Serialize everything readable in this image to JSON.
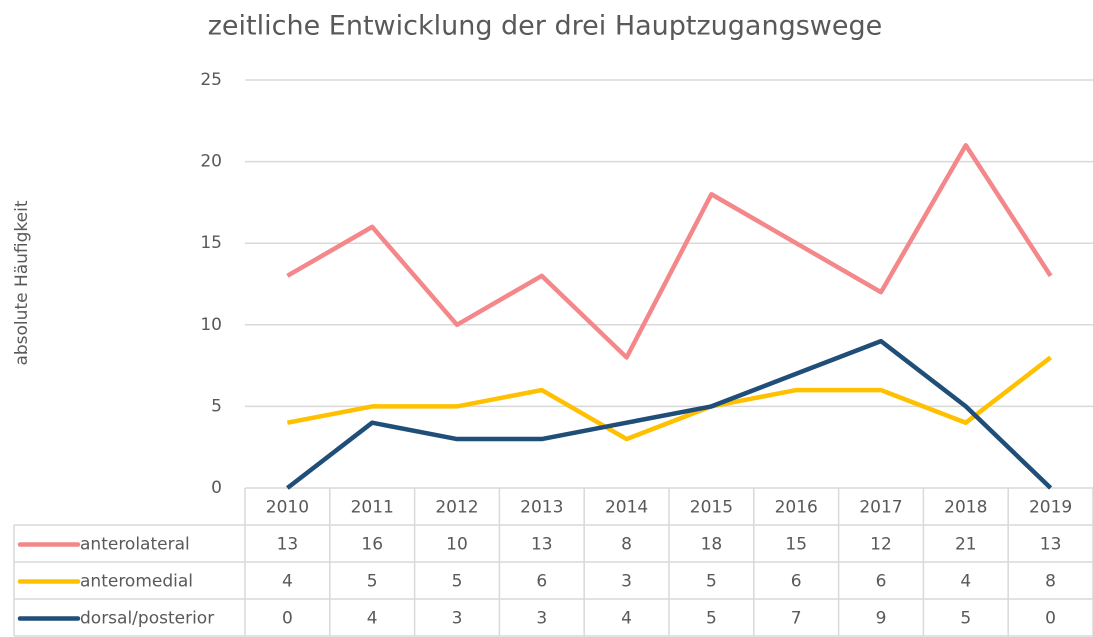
{
  "chart_data": {
    "type": "line",
    "title": "zeitliche Entwicklung der drei Hauptzugangswege",
    "y_label": "absolute Häufigkeit",
    "categories": [
      "2010",
      "2011",
      "2012",
      "2013",
      "2014",
      "2015",
      "2016",
      "2017",
      "2018",
      "2019"
    ],
    "series": [
      {
        "name": "anterolateral",
        "color": "#f4878a",
        "values": [
          13,
          16,
          10,
          13,
          8,
          18,
          15,
          12,
          21,
          13
        ]
      },
      {
        "name": "anteromedial",
        "color": "#ffc000",
        "values": [
          4,
          5,
          5,
          6,
          3,
          5,
          6,
          6,
          4,
          8
        ]
      },
      {
        "name": "dorsal/posterior",
        "color": "#1f4e79",
        "values": [
          0,
          4,
          3,
          3,
          4,
          5,
          7,
          9,
          5,
          0
        ]
      }
    ],
    "ylim": [
      0,
      25
    ],
    "yticks": [
      0,
      5,
      10,
      15,
      20,
      25
    ],
    "grid": true,
    "data_table": true
  }
}
